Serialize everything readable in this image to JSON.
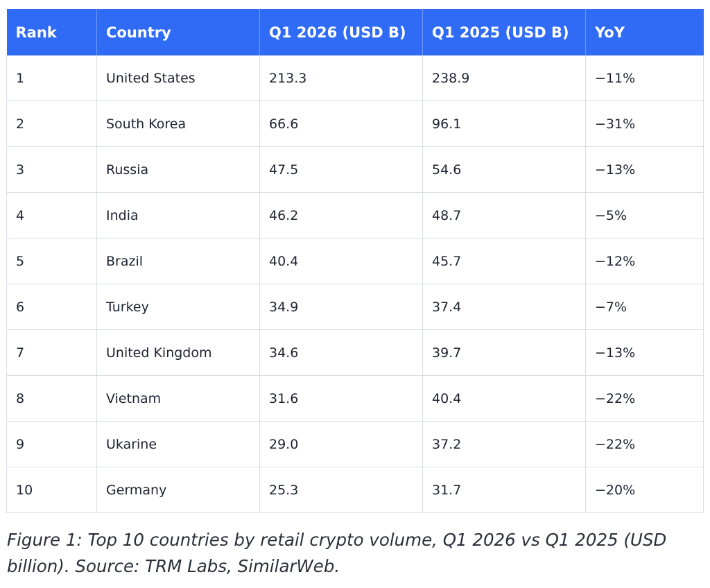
{
  "chart_data": {
    "type": "table",
    "columns": [
      "Rank",
      "Country",
      "Q1 2026 (USD B)",
      "Q1 2025 (USD B)",
      "YoY"
    ],
    "rows": [
      [
        "1",
        "United States",
        "213.3",
        "238.9",
        "−11%"
      ],
      [
        "2",
        "South Korea",
        "66.6",
        "96.1",
        "−31%"
      ],
      [
        "3",
        "Russia",
        "47.5",
        "54.6",
        "−13%"
      ],
      [
        "4",
        "India",
        "46.2",
        "48.7",
        "−5%"
      ],
      [
        "5",
        "Brazil",
        "40.4",
        "45.7",
        "−12%"
      ],
      [
        "6",
        "Turkey",
        "34.9",
        "37.4",
        "−7%"
      ],
      [
        "7",
        "United Kingdom",
        "34.6",
        "39.7",
        "−13%"
      ],
      [
        "8",
        "Vietnam",
        "31.6",
        "40.4",
        "−22%"
      ],
      [
        "9",
        "Ukarine",
        "29.0",
        "37.2",
        "−22%"
      ],
      [
        "10",
        "Germany",
        "25.3",
        "31.7",
        "−20%"
      ]
    ],
    "header_color": "#2f6bf4",
    "caption": "Figure 1: Top 10 countries by retail crypto volume, Q1 2026 vs Q1 2025 (USD billion). Source: TRM Labs, SimilarWeb."
  }
}
